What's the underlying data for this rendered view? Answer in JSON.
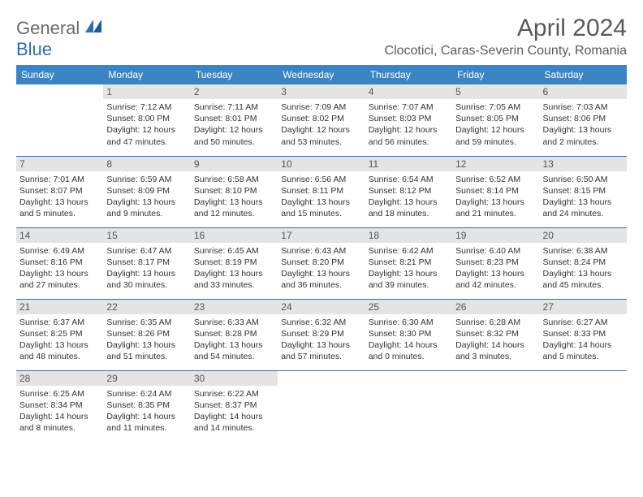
{
  "brand": {
    "text1": "General",
    "text2": "Blue"
  },
  "title": "April 2024",
  "location": "Clocotici, Caras-Severin County, Romania",
  "headers": [
    "Sunday",
    "Monday",
    "Tuesday",
    "Wednesday",
    "Thursday",
    "Friday",
    "Saturday"
  ],
  "colors": {
    "header_bg": "#3b84c4",
    "header_text": "#ffffff",
    "daynum_bg": "#e4e4e4",
    "border": "#3b6f9e",
    "title_color": "#5a5a5a",
    "logo_gray": "#6a6a6a",
    "logo_blue": "#2a6fb5"
  },
  "days": {
    "1": {
      "sunrise": "7:12 AM",
      "sunset": "8:00 PM",
      "daylight": "12 hours and 47 minutes."
    },
    "2": {
      "sunrise": "7:11 AM",
      "sunset": "8:01 PM",
      "daylight": "12 hours and 50 minutes."
    },
    "3": {
      "sunrise": "7:09 AM",
      "sunset": "8:02 PM",
      "daylight": "12 hours and 53 minutes."
    },
    "4": {
      "sunrise": "7:07 AM",
      "sunset": "8:03 PM",
      "daylight": "12 hours and 56 minutes."
    },
    "5": {
      "sunrise": "7:05 AM",
      "sunset": "8:05 PM",
      "daylight": "12 hours and 59 minutes."
    },
    "6": {
      "sunrise": "7:03 AM",
      "sunset": "8:06 PM",
      "daylight": "13 hours and 2 minutes."
    },
    "7": {
      "sunrise": "7:01 AM",
      "sunset": "8:07 PM",
      "daylight": "13 hours and 5 minutes."
    },
    "8": {
      "sunrise": "6:59 AM",
      "sunset": "8:09 PM",
      "daylight": "13 hours and 9 minutes."
    },
    "9": {
      "sunrise": "6:58 AM",
      "sunset": "8:10 PM",
      "daylight": "13 hours and 12 minutes."
    },
    "10": {
      "sunrise": "6:56 AM",
      "sunset": "8:11 PM",
      "daylight": "13 hours and 15 minutes."
    },
    "11": {
      "sunrise": "6:54 AM",
      "sunset": "8:12 PM",
      "daylight": "13 hours and 18 minutes."
    },
    "12": {
      "sunrise": "6:52 AM",
      "sunset": "8:14 PM",
      "daylight": "13 hours and 21 minutes."
    },
    "13": {
      "sunrise": "6:50 AM",
      "sunset": "8:15 PM",
      "daylight": "13 hours and 24 minutes."
    },
    "14": {
      "sunrise": "6:49 AM",
      "sunset": "8:16 PM",
      "daylight": "13 hours and 27 minutes."
    },
    "15": {
      "sunrise": "6:47 AM",
      "sunset": "8:17 PM",
      "daylight": "13 hours and 30 minutes."
    },
    "16": {
      "sunrise": "6:45 AM",
      "sunset": "8:19 PM",
      "daylight": "13 hours and 33 minutes."
    },
    "17": {
      "sunrise": "6:43 AM",
      "sunset": "8:20 PM",
      "daylight": "13 hours and 36 minutes."
    },
    "18": {
      "sunrise": "6:42 AM",
      "sunset": "8:21 PM",
      "daylight": "13 hours and 39 minutes."
    },
    "19": {
      "sunrise": "6:40 AM",
      "sunset": "8:23 PM",
      "daylight": "13 hours and 42 minutes."
    },
    "20": {
      "sunrise": "6:38 AM",
      "sunset": "8:24 PM",
      "daylight": "13 hours and 45 minutes."
    },
    "21": {
      "sunrise": "6:37 AM",
      "sunset": "8:25 PM",
      "daylight": "13 hours and 48 minutes."
    },
    "22": {
      "sunrise": "6:35 AM",
      "sunset": "8:26 PM",
      "daylight": "13 hours and 51 minutes."
    },
    "23": {
      "sunrise": "6:33 AM",
      "sunset": "8:28 PM",
      "daylight": "13 hours and 54 minutes."
    },
    "24": {
      "sunrise": "6:32 AM",
      "sunset": "8:29 PM",
      "daylight": "13 hours and 57 minutes."
    },
    "25": {
      "sunrise": "6:30 AM",
      "sunset": "8:30 PM",
      "daylight": "14 hours and 0 minutes."
    },
    "26": {
      "sunrise": "6:28 AM",
      "sunset": "8:32 PM",
      "daylight": "14 hours and 3 minutes."
    },
    "27": {
      "sunrise": "6:27 AM",
      "sunset": "8:33 PM",
      "daylight": "14 hours and 5 minutes."
    },
    "28": {
      "sunrise": "6:25 AM",
      "sunset": "8:34 PM",
      "daylight": "14 hours and 8 minutes."
    },
    "29": {
      "sunrise": "6:24 AM",
      "sunset": "8:35 PM",
      "daylight": "14 hours and 11 minutes."
    },
    "30": {
      "sunrise": "6:22 AM",
      "sunset": "8:37 PM",
      "daylight": "14 hours and 14 minutes."
    }
  },
  "grid": [
    [
      null,
      1,
      2,
      3,
      4,
      5,
      6
    ],
    [
      7,
      8,
      9,
      10,
      11,
      12,
      13
    ],
    [
      14,
      15,
      16,
      17,
      18,
      19,
      20
    ],
    [
      21,
      22,
      23,
      24,
      25,
      26,
      27
    ],
    [
      28,
      29,
      30,
      null,
      null,
      null,
      null
    ]
  ],
  "labels": {
    "sunrise": "Sunrise: ",
    "sunset": "Sunset: ",
    "daylight": "Daylight: "
  }
}
